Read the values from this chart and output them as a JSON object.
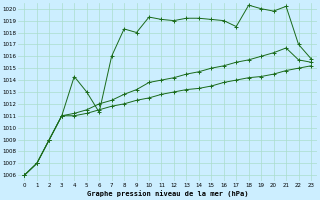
{
  "title": "Graphe pression niveau de la mer (hPa)",
  "bg_color": "#cceeff",
  "grid_color": "#aaddcc",
  "line_color": "#1a6b1a",
  "xlim": [
    -0.5,
    23.5
  ],
  "ylim": [
    1005.5,
    1020.5
  ],
  "yticks": [
    1006,
    1007,
    1008,
    1009,
    1010,
    1011,
    1012,
    1013,
    1014,
    1015,
    1016,
    1017,
    1018,
    1019,
    1020
  ],
  "xticks": [
    0,
    1,
    2,
    3,
    4,
    5,
    6,
    7,
    8,
    9,
    10,
    11,
    12,
    13,
    14,
    15,
    16,
    17,
    18,
    19,
    20,
    21,
    22,
    23
  ],
  "series1": {
    "x": [
      0,
      1,
      2,
      3,
      4,
      5,
      6,
      7,
      8,
      9,
      10,
      11,
      12,
      13,
      14,
      15,
      16,
      17,
      18,
      19,
      20,
      21,
      22,
      23
    ],
    "y": [
      1006.0,
      1007.0,
      1009.0,
      1011.0,
      1014.3,
      1013.0,
      1011.3,
      1016.0,
      1018.3,
      1018.0,
      1019.3,
      1019.1,
      1019.0,
      1019.2,
      1019.2,
      1019.1,
      1019.0,
      1018.5,
      1020.3,
      1020.0,
      1019.8,
      1020.2,
      1017.0,
      1015.8
    ]
  },
  "series2": {
    "x": [
      0,
      1,
      2,
      3,
      4,
      5,
      6,
      7,
      8,
      9,
      10,
      11,
      12,
      13,
      14,
      15,
      16,
      17,
      18,
      19,
      20,
      21,
      22,
      23
    ],
    "y": [
      1006.0,
      1007.0,
      1009.0,
      1011.0,
      1011.0,
      1011.2,
      1011.5,
      1011.8,
      1012.0,
      1012.3,
      1012.5,
      1012.8,
      1013.0,
      1013.2,
      1013.3,
      1013.5,
      1013.8,
      1014.0,
      1014.2,
      1014.3,
      1014.5,
      1014.8,
      1015.0,
      1015.2
    ]
  },
  "series3": {
    "x": [
      0,
      1,
      2,
      3,
      4,
      5,
      6,
      7,
      8,
      9,
      10,
      11,
      12,
      13,
      14,
      15,
      16,
      17,
      18,
      19,
      20,
      21,
      22,
      23
    ],
    "y": [
      1006.0,
      1007.0,
      1009.0,
      1011.0,
      1011.2,
      1011.5,
      1012.0,
      1012.3,
      1012.8,
      1013.2,
      1013.8,
      1014.0,
      1014.2,
      1014.5,
      1014.7,
      1015.0,
      1015.2,
      1015.5,
      1015.7,
      1016.0,
      1016.3,
      1016.7,
      1015.7,
      1015.5
    ]
  }
}
